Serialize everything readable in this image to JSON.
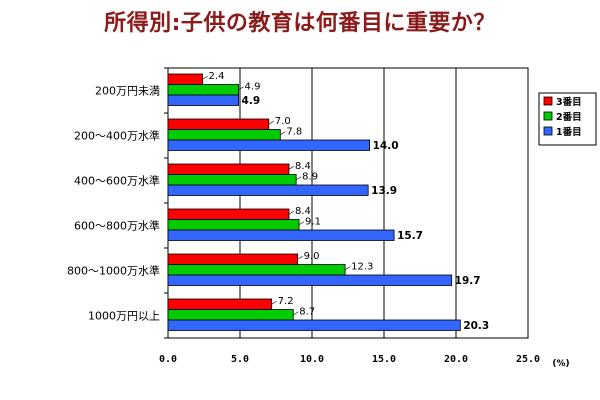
{
  "chart_data": {
    "type": "bar",
    "orientation": "horizontal",
    "title": "所得別:子供の教育は何番目に重要か？",
    "categories": [
      "200万円未満",
      "200～400万水準",
      "400～600万水準",
      "600～800万水準",
      "800～1000万水準",
      "1000万円以上"
    ],
    "series": [
      {
        "name": "3番目",
        "color": "#ff0000",
        "values": [
          2.4,
          7.0,
          8.4,
          8.4,
          9.0,
          7.2
        ],
        "labels": [
          "2.4",
          "7.0",
          "8.4",
          "8.4",
          "9.0",
          "7.2"
        ]
      },
      {
        "name": "2番目",
        "color": "#00cc00",
        "values": [
          4.9,
          7.8,
          8.9,
          9.1,
          12.3,
          8.7
        ],
        "labels": [
          "4.9",
          "7.8",
          "8.9",
          "9.1",
          "12.3",
          "8.7"
        ]
      },
      {
        "name": "1番目",
        "color": "#3366ff",
        "values": [
          4.9,
          14.0,
          13.9,
          15.7,
          19.7,
          20.3
        ],
        "labels": [
          "4.9",
          "14.0",
          "13.9",
          "15.7",
          "19.7",
          "20.3"
        ]
      }
    ],
    "xlim": [
      0,
      25
    ],
    "xticks": [
      "0.0",
      "5.0",
      "10.0",
      "15.0",
      "20.0",
      "25.0"
    ],
    "xunit": "(%)",
    "grid": true,
    "legend_position": "right"
  }
}
